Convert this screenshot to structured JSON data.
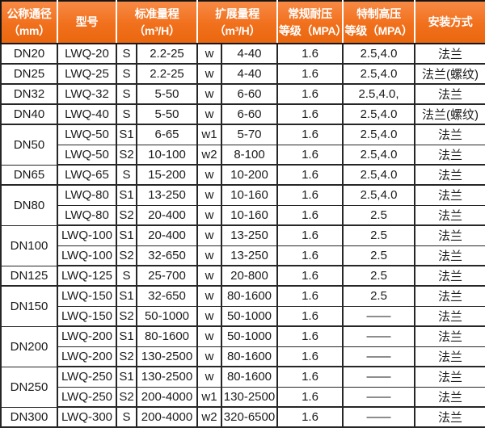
{
  "colors": {
    "header_bg": "#f1701c",
    "header_text": "#ffffff",
    "border": "#262626",
    "body_text": "#1b1b1b",
    "body_bg": "#ffffff"
  },
  "table": {
    "headers": [
      {
        "label": "公称通径\n（mm）"
      },
      {
        "label": "型号"
      },
      {
        "label": "标准量程\n（m³/H）"
      },
      {
        "label": "扩展量程\n（m³/H）"
      },
      {
        "label": "常规耐压\n等级（MPA）"
      },
      {
        "label": "特制高压\n等级（MPA）"
      },
      {
        "label": "安装方式"
      }
    ],
    "rows": [
      {
        "dn": "DN20",
        "dn_span": 1,
        "model": "LWQ-20",
        "s": "S",
        "std": "2.2-25",
        "w": "w",
        "ext": "4-40",
        "normal": "1.6",
        "high": "2.5,4.0",
        "install": "法兰",
        "group_end": true
      },
      {
        "dn": "DN25",
        "dn_span": 1,
        "model": "LWQ-25",
        "s": "S",
        "std": "2.2-25",
        "w": "w",
        "ext": "4-40",
        "normal": "1.6",
        "high": "2.5,4.0",
        "install": "法兰(螺纹)",
        "group_end": true
      },
      {
        "dn": "DN32",
        "dn_span": 1,
        "model": "LWQ-32",
        "s": "S",
        "std": "5-50",
        "w": "w",
        "ext": "6-60",
        "normal": "1.6",
        "high": "2.5,4.0,",
        "install": "法兰",
        "group_end": true
      },
      {
        "dn": "DN40",
        "dn_span": 1,
        "model": "LWQ-40",
        "s": "S",
        "std": "5-50",
        "w": "w",
        "ext": "6-60",
        "normal": "1.6",
        "high": "2.5,4.0",
        "install": "法兰(螺纹)",
        "group_end": true
      },
      {
        "dn": "DN50",
        "dn_span": 2,
        "model": "LWQ-50",
        "s": "S1",
        "std": "6-65",
        "w": "w1",
        "ext": "5-70",
        "normal": "1.6",
        "high": "2.5,4.0",
        "install": "法兰",
        "group_end": false
      },
      {
        "model": "LWQ-50",
        "s": "S2",
        "std": "10-100",
        "w": "w2",
        "ext": "8-100",
        "normal": "1.6",
        "high": "2.5,4.0",
        "install": "法兰",
        "group_end": true
      },
      {
        "dn": "DN65",
        "dn_span": 1,
        "model": "LWQ-65",
        "s": "S",
        "std": "15-200",
        "w": "w",
        "ext": "10-200",
        "normal": "1.6",
        "high": "2.5,4.0",
        "install": "法兰",
        "group_end": true
      },
      {
        "dn": "DN80",
        "dn_span": 2,
        "model": "LWQ-80",
        "s": "S1",
        "std": "13-250",
        "w": "w",
        "ext": "10-160",
        "normal": "1.6",
        "high": "2.5,4.0",
        "install": "法兰",
        "group_end": false
      },
      {
        "model": "LWQ-80",
        "s": "S2",
        "std": "20-400",
        "w": "w",
        "ext": "10-160",
        "normal": "1.6",
        "high": "2.5",
        "install": "法兰",
        "group_end": true
      },
      {
        "dn": "DN100",
        "dn_span": 2,
        "model": "LWQ-100",
        "s": "S1",
        "std": "20-400",
        "w": "w",
        "ext": "13-250",
        "normal": "1.6",
        "high": "2.5",
        "install": "法兰",
        "group_end": false
      },
      {
        "model": "LWQ-100",
        "s": "S2",
        "std": "32-650",
        "w": "w",
        "ext": "13-250",
        "normal": "1.6",
        "high": "2.5",
        "install": "法兰",
        "group_end": true
      },
      {
        "dn": "DN125",
        "dn_span": 1,
        "model": "LWQ-125",
        "s": "S",
        "std": "25-700",
        "w": "w",
        "ext": "20-800",
        "normal": "1.6",
        "high": "2.5",
        "install": "法兰",
        "group_end": true
      },
      {
        "dn": "DN150",
        "dn_span": 2,
        "model": "LWQ-150",
        "s": "S1",
        "std": "32-650",
        "w": "w",
        "ext": "80-1600",
        "normal": "1.6",
        "high": "2.5",
        "install": "法兰",
        "group_end": false
      },
      {
        "model": "LWQ-150",
        "s": "S2",
        "std": "50-1000",
        "w": "w",
        "ext": "50-1000",
        "normal": "1.6",
        "high": "——",
        "install": "法兰",
        "group_end": true
      },
      {
        "dn": "DN200",
        "dn_span": 2,
        "model": "LWQ-200",
        "s": "S1",
        "std": "80-1600",
        "w": "w",
        "ext": "50-1000",
        "normal": "1.6",
        "high": "——",
        "install": "法兰",
        "group_end": false
      },
      {
        "model": "LWQ-200",
        "s": "S2",
        "std": "130-2500",
        "w": "w",
        "ext": "80-1600",
        "normal": "1.6",
        "high": "——",
        "install": "法兰",
        "group_end": true
      },
      {
        "dn": "DN250",
        "dn_span": 2,
        "model": "LWQ-250",
        "s": "S1",
        "std": "130-2500",
        "w": "w",
        "ext": "80-1600",
        "normal": "1.6",
        "high": "——",
        "install": "法兰",
        "group_end": false
      },
      {
        "model": "LWQ-250",
        "s": "S2",
        "std": "200-4000",
        "w": "w1",
        "ext": "130-2500",
        "normal": "1.6",
        "high": "——",
        "install": "法兰",
        "group_end": true
      },
      {
        "dn": "DN300",
        "dn_span": 1,
        "model": "LWQ-300",
        "s": "S",
        "std": "200-4000",
        "w": "w2",
        "ext": "320-6500",
        "normal": "1.6",
        "high": "——",
        "install": "法兰",
        "group_end": true
      }
    ]
  }
}
